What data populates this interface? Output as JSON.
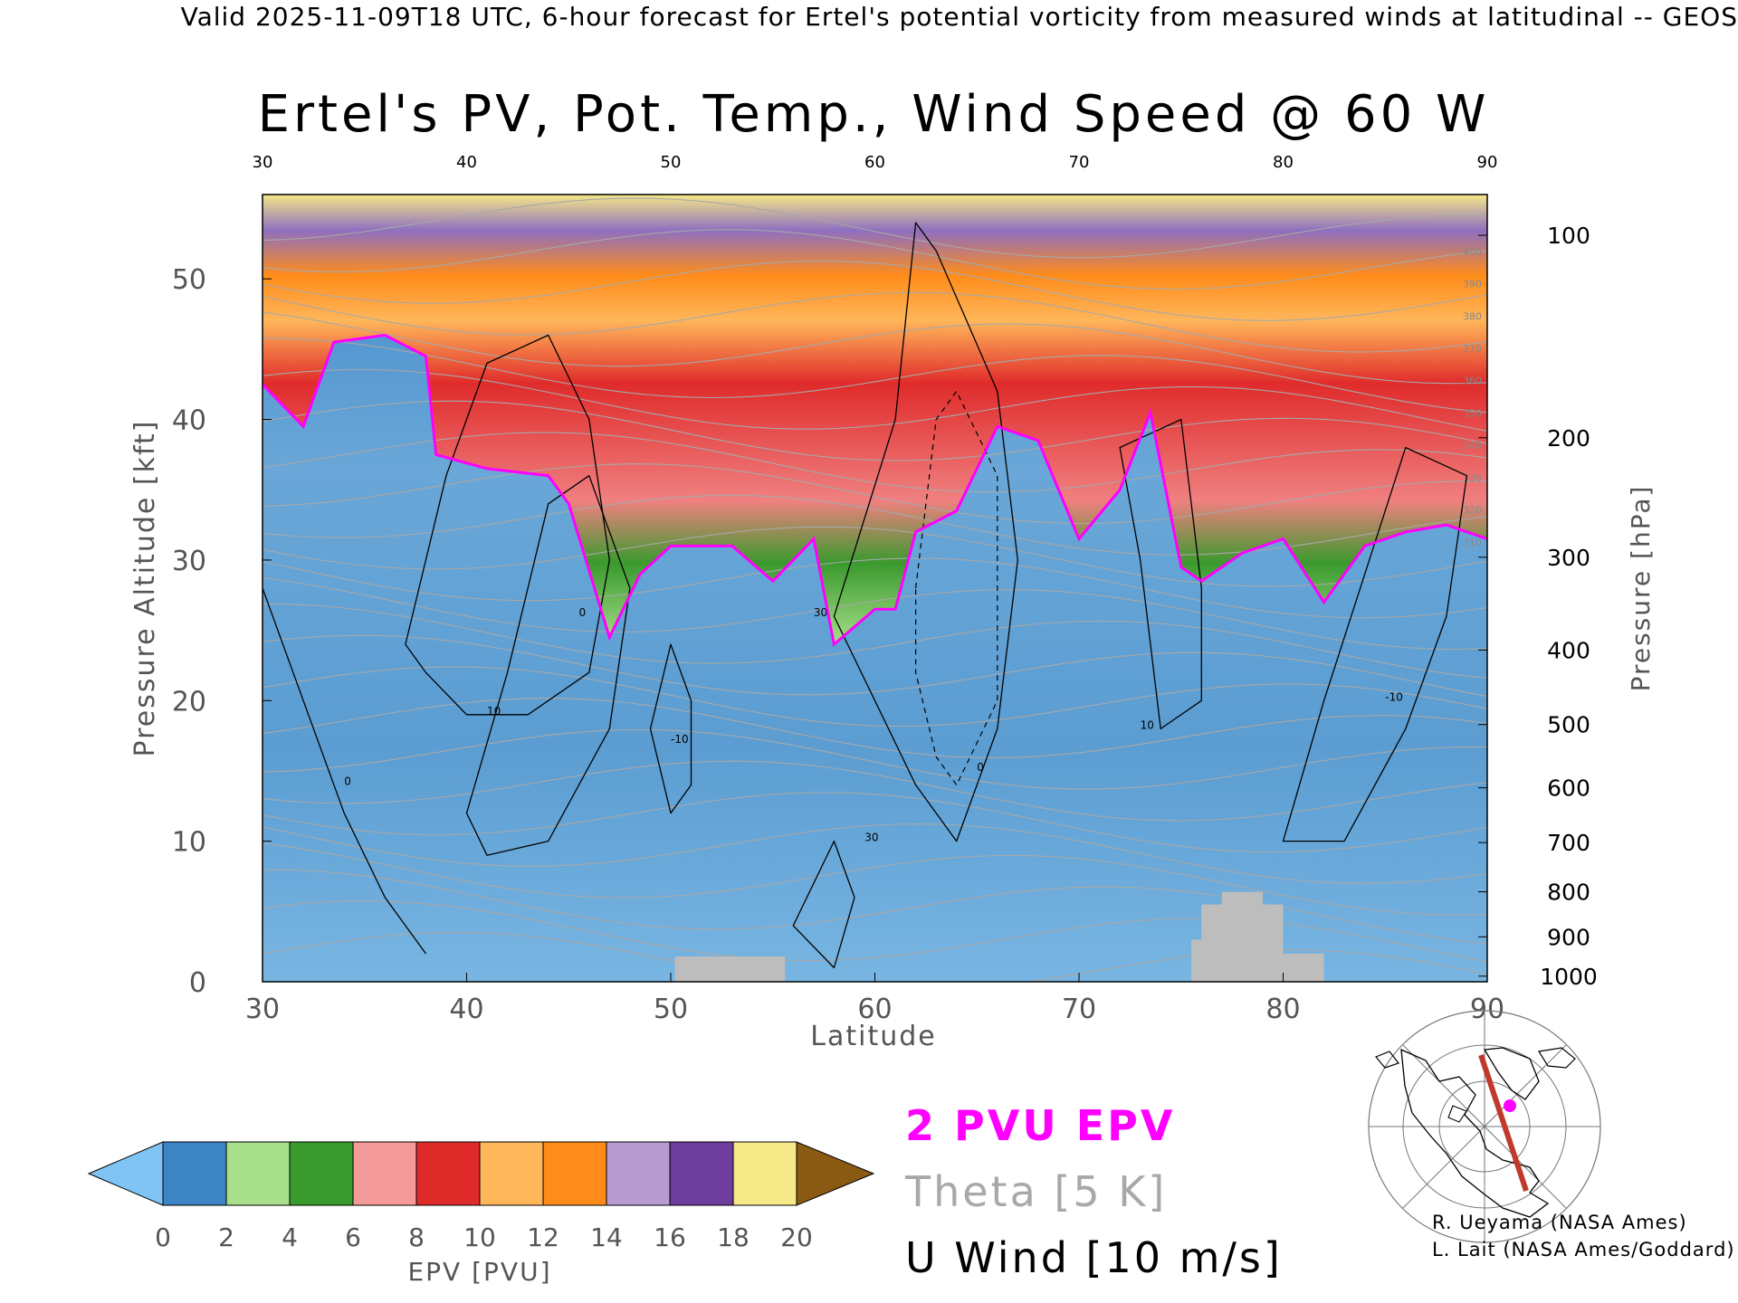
{
  "header": {
    "valid_line": "Valid 2025-11-09T18 UTC, 6-hour forecast for Ertel's potential vorticity from measured winds at latitudinal -- GEOS"
  },
  "chart_data": {
    "type": "heatmap",
    "title": "Ertel's PV, Pot. Temp., Wind Speed @ 60 W",
    "xlabel": "Latitude",
    "ylabel_left": "Pressure Altitude [kft]",
    "ylabel_right": "Pressure [hPa]",
    "xlim": [
      30,
      90
    ],
    "ylim": [
      0,
      56
    ],
    "x_ticks": [
      "30",
      "40",
      "50",
      "60",
      "70",
      "80",
      "90"
    ],
    "x_ticks_top": [
      "30",
      "40",
      "50",
      "60",
      "70",
      "80",
      "90"
    ],
    "y_ticks_left": [
      "0",
      "10",
      "20",
      "30",
      "40",
      "50"
    ],
    "y_ticks_right": [
      {
        "label": "100",
        "kft": 53.1
      },
      {
        "label": "200",
        "kft": 38.7
      },
      {
        "label": "300",
        "kft": 30.2
      },
      {
        "label": "400",
        "kft": 23.6
      },
      {
        "label": "500",
        "kft": 18.3
      },
      {
        "label": "600",
        "kft": 13.8
      },
      {
        "label": "700",
        "kft": 9.9
      },
      {
        "label": "800",
        "kft": 6.4
      },
      {
        "label": "900",
        "kft": 3.2
      },
      {
        "label": "1000",
        "kft": 0.4
      }
    ],
    "tropopause_2pvu_kft": [
      {
        "lat": 30,
        "kft": 42.5
      },
      {
        "lat": 32,
        "kft": 39.5
      },
      {
        "lat": 33.5,
        "kft": 45.5
      },
      {
        "lat": 36,
        "kft": 46.0
      },
      {
        "lat": 38,
        "kft": 44.5
      },
      {
        "lat": 38.5,
        "kft": 37.5
      },
      {
        "lat": 41,
        "kft": 36.5
      },
      {
        "lat": 44,
        "kft": 36.0
      },
      {
        "lat": 45,
        "kft": 34.0
      },
      {
        "lat": 47,
        "kft": 24.5
      },
      {
        "lat": 48.5,
        "kft": 29.0
      },
      {
        "lat": 50,
        "kft": 31.0
      },
      {
        "lat": 53,
        "kft": 31.0
      },
      {
        "lat": 55,
        "kft": 28.5
      },
      {
        "lat": 57,
        "kft": 31.5
      },
      {
        "lat": 58,
        "kft": 24.0
      },
      {
        "lat": 60,
        "kft": 26.5
      },
      {
        "lat": 61,
        "kft": 26.5
      },
      {
        "lat": 62,
        "kft": 32.0
      },
      {
        "lat": 64,
        "kft": 33.5
      },
      {
        "lat": 66,
        "kft": 39.5
      },
      {
        "lat": 68,
        "kft": 38.5
      },
      {
        "lat": 70,
        "kft": 31.5
      },
      {
        "lat": 72,
        "kft": 35.0
      },
      {
        "lat": 73.5,
        "kft": 40.5
      },
      {
        "lat": 75,
        "kft": 29.5
      },
      {
        "lat": 76,
        "kft": 28.5
      },
      {
        "lat": 78,
        "kft": 30.5
      },
      {
        "lat": 80,
        "kft": 31.5
      },
      {
        "lat": 82,
        "kft": 27.0
      },
      {
        "lat": 84,
        "kft": 31.0
      },
      {
        "lat": 86,
        "kft": 32.0
      },
      {
        "lat": 88,
        "kft": 32.5
      },
      {
        "lat": 90,
        "kft": 31.5
      }
    ],
    "theta_labels_K": [
      "310",
      "320",
      "330",
      "340",
      "350",
      "360",
      "370",
      "380",
      "390",
      "400"
    ],
    "u_wind_contour_labels": [
      "0",
      "10",
      "-10",
      "30"
    ],
    "colorbar": {
      "label": "EPV [PVU]",
      "tick_labels": [
        "0",
        "2",
        "4",
        "6",
        "8",
        "10",
        "12",
        "14",
        "16",
        "18",
        "20"
      ],
      "colors": [
        "#6db6e8",
        "#3d84c4",
        "#a8df8a",
        "#3a9a2e",
        "#f59a9a",
        "#e02b2b",
        "#ffb65a",
        "#ff8c1a",
        "#b89bd0",
        "#6c3d9c",
        "#f5e887",
        "#8a5a12"
      ],
      "under_color": "#7fc4f4",
      "over_color": "#8a5a12"
    }
  },
  "legend": {
    "epv_line": "2 PVU EPV",
    "theta": "Theta [5 K]",
    "u_wind": "U Wind [10 m/s]",
    "colors": {
      "epv": "#ff00ff",
      "theta": "#a8a8a8",
      "u_wind": "#000000"
    }
  },
  "credits": {
    "line1": "R. Ueyama (NASA Ames)",
    "line2": "L. Lait (NASA Ames/Goddard)"
  },
  "inset_map": {
    "marker_color": "#ff00ff",
    "track_color": "#c0392b"
  }
}
